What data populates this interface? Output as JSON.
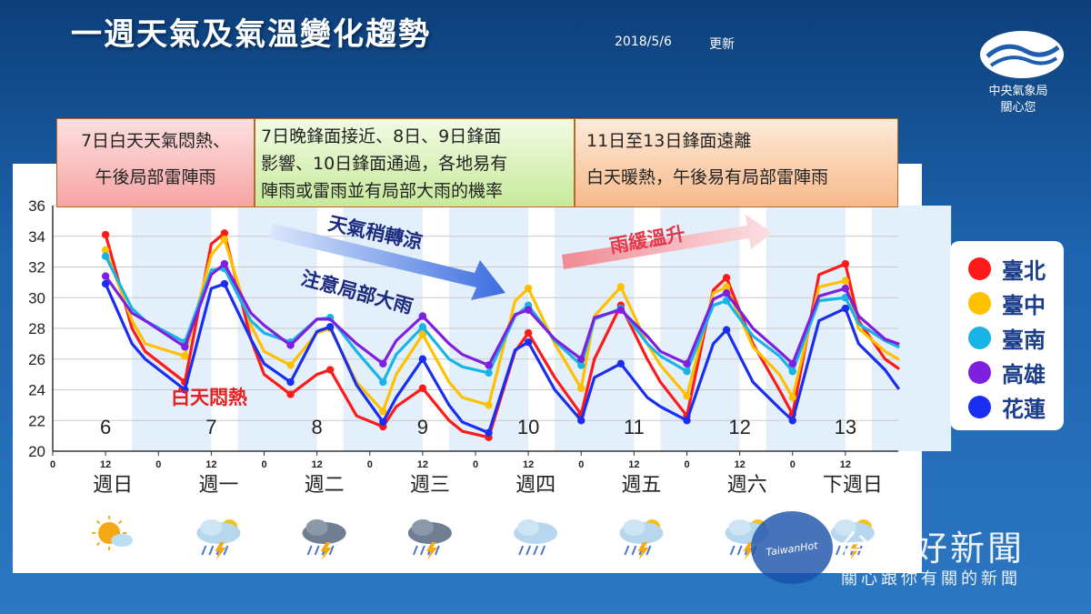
{
  "header": {
    "title": "一週天氣及氣溫變化趨勢",
    "date": "2018/5/6",
    "update_label": "更新",
    "agency_line1": "中央氣象局",
    "agency_line2": "關心您"
  },
  "notes": {
    "note1": [
      "7日白天天氣悶熱、",
      "午後局部雷陣雨"
    ],
    "note2": [
      "7日晚鋒面接近、8日、9日鋒面",
      "影響、10日鋒面通過，各地易有",
      "陣雨或雷雨並有局部大雨的機率"
    ],
    "note3": [
      "11日至13日鋒面遠離",
      "白天暖熱，午後易有局部雷陣雨"
    ]
  },
  "annotations": {
    "cooler": "天氣稍轉涼",
    "heavy_rain": "注意局部大雨",
    "warming": "雨緩溫升",
    "hot_day": "白天悶熱"
  },
  "weekdays": [
    "週日",
    "週一",
    "週二",
    "週三",
    "週四",
    "週五",
    "週六",
    "下週日"
  ],
  "weather_icons": [
    "sunny-cloud-icon",
    "thunderstorm-icon",
    "thunderstorm-icon",
    "thunderstorm-icon",
    "rain-cloud-icon",
    "thunderstorm-icon",
    "thunderstorm-icon",
    "thunderstorm-icon"
  ],
  "legend": [
    {
      "name": "臺北",
      "color": "#ff1a1a"
    },
    {
      "name": "臺中",
      "color": "#ffc000"
    },
    {
      "name": "臺南",
      "color": "#19b4e6"
    },
    {
      "name": "高雄",
      "color": "#7f1fe0"
    },
    {
      "name": "花蓮",
      "color": "#1a2ef0"
    }
  ],
  "watermark": {
    "tag": "TaiwanHot",
    "main": "台灣好新聞",
    "sub": "關心跟你有關的新聞"
  },
  "chart_data": {
    "type": "line",
    "title": "",
    "xlabel": "",
    "ylabel": "",
    "ylim": [
      20,
      36
    ],
    "yticks": [
      20,
      22,
      24,
      26,
      28,
      30,
      32,
      34,
      36
    ],
    "xlim_hours": [
      0,
      192
    ],
    "day_labels": [
      "6",
      "7",
      "8",
      "9",
      "10",
      "11",
      "12",
      "13"
    ],
    "hour_ticks": [
      "0",
      "12"
    ],
    "grid": true,
    "series": [
      {
        "name": "臺北",
        "color": "#ff1a1a",
        "x": [
          12,
          18,
          21,
          30,
          36,
          39,
          45,
          48,
          54,
          60,
          63,
          69,
          75,
          78,
          84,
          90,
          93,
          99,
          105,
          108,
          114,
          120,
          123,
          129,
          135,
          138,
          144,
          150,
          153,
          159,
          165,
          168,
          174,
          180,
          183,
          189,
          192
        ],
        "values": [
          34.1,
          28.0,
          26.5,
          24.5,
          33.5,
          34.2,
          27.3,
          25.0,
          23.7,
          25.0,
          25.3,
          22.3,
          21.6,
          22.9,
          24.1,
          22.0,
          21.3,
          20.9,
          26.5,
          27.7,
          24.8,
          22.4,
          26.0,
          29.5,
          26.0,
          24.5,
          22.3,
          30.5,
          31.3,
          27.0,
          24.0,
          22.4,
          31.5,
          32.2,
          28.5,
          26.0,
          25.4
        ]
      },
      {
        "name": "臺中",
        "color": "#ffc000",
        "x": [
          12,
          18,
          21,
          30,
          36,
          39,
          45,
          48,
          54,
          60,
          63,
          69,
          75,
          78,
          84,
          90,
          93,
          99,
          105,
          108,
          114,
          120,
          123,
          129,
          135,
          138,
          144,
          150,
          153,
          159,
          165,
          168,
          174,
          180,
          183,
          189,
          192
        ],
        "values": [
          33.1,
          28.5,
          27.0,
          26.2,
          32.8,
          33.8,
          28.2,
          26.5,
          25.6,
          27.7,
          28.0,
          24.5,
          22.6,
          25.0,
          27.6,
          24.5,
          23.5,
          23.0,
          29.8,
          30.6,
          27.0,
          24.1,
          28.8,
          30.7,
          27.0,
          25.6,
          23.6,
          30.3,
          30.7,
          26.8,
          25.0,
          23.5,
          30.7,
          31.1,
          28.0,
          26.5,
          26.0
        ]
      },
      {
        "name": "臺南",
        "color": "#19b4e6",
        "x": [
          12,
          18,
          21,
          30,
          36,
          39,
          45,
          48,
          54,
          60,
          63,
          69,
          75,
          78,
          84,
          90,
          93,
          99,
          105,
          108,
          114,
          120,
          123,
          129,
          135,
          138,
          144,
          150,
          153,
          159,
          165,
          168,
          174,
          180,
          183,
          189,
          192
        ],
        "values": [
          32.7,
          29.3,
          28.5,
          27.1,
          31.8,
          31.9,
          28.5,
          27.7,
          27.1,
          28.6,
          28.7,
          26.5,
          24.5,
          26.3,
          28.1,
          26.0,
          25.5,
          25.1,
          28.8,
          29.5,
          27.2,
          25.6,
          28.6,
          29.3,
          27.0,
          26.2,
          25.2,
          29.5,
          29.8,
          27.5,
          26.2,
          25.2,
          29.8,
          30.0,
          28.3,
          27.2,
          26.8
        ]
      },
      {
        "name": "高雄",
        "color": "#7f1fe0",
        "x": [
          12,
          18,
          21,
          30,
          36,
          39,
          45,
          48,
          54,
          60,
          63,
          69,
          75,
          78,
          84,
          90,
          93,
          99,
          105,
          108,
          114,
          120,
          123,
          129,
          135,
          138,
          144,
          150,
          153,
          159,
          165,
          168,
          174,
          180,
          183,
          189,
          192
        ],
        "values": [
          31.4,
          29.0,
          28.5,
          26.8,
          31.5,
          32.2,
          29.0,
          28.2,
          26.9,
          28.6,
          28.6,
          27.0,
          25.7,
          27.2,
          28.8,
          27.0,
          26.3,
          25.6,
          28.9,
          29.2,
          27.3,
          26.0,
          28.7,
          29.2,
          27.5,
          26.5,
          25.7,
          29.9,
          30.3,
          28.0,
          26.5,
          25.7,
          30.1,
          30.6,
          28.8,
          27.3,
          27.0
        ]
      },
      {
        "name": "花蓮",
        "color": "#1a2ef0",
        "x": [
          12,
          18,
          21,
          30,
          36,
          39,
          45,
          48,
          54,
          60,
          63,
          69,
          75,
          78,
          84,
          90,
          93,
          99,
          105,
          108,
          114,
          120,
          123,
          129,
          135,
          138,
          144,
          150,
          153,
          159,
          165,
          168,
          174,
          180,
          183,
          189,
          192
        ],
        "values": [
          30.9,
          27.0,
          26.0,
          24.0,
          30.6,
          30.9,
          27.3,
          25.7,
          24.5,
          27.8,
          28.1,
          24.3,
          21.9,
          23.5,
          26.0,
          23.0,
          21.9,
          21.2,
          26.6,
          27.1,
          24.0,
          22.0,
          24.8,
          25.7,
          23.5,
          22.9,
          22.0,
          27.0,
          27.9,
          24.5,
          22.8,
          22.0,
          28.5,
          29.3,
          27.0,
          25.3,
          24.1
        ]
      }
    ]
  }
}
